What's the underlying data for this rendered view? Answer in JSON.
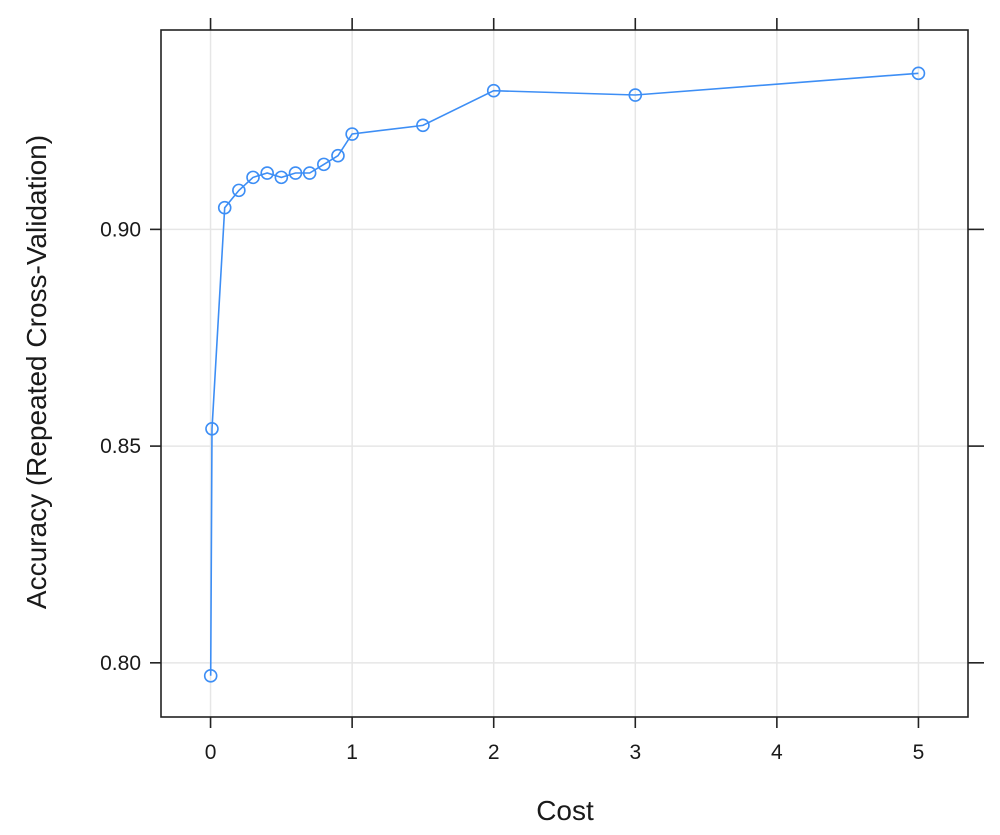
{
  "chart_data": {
    "type": "line",
    "title": "",
    "xlabel": "Cost",
    "ylabel": "Accuracy (Repeated Cross-Validation)",
    "xlim": [
      -0.35,
      5.35
    ],
    "ylim": [
      0.7875,
      0.946
    ],
    "x_ticks": [
      0,
      1,
      2,
      3,
      4,
      5
    ],
    "y_ticks": [
      0.8,
      0.85,
      0.9
    ],
    "x_tick_labels": [
      "0",
      "1",
      "2",
      "3",
      "4",
      "5"
    ],
    "y_tick_labels": [
      "0.80",
      "0.85",
      "0.90"
    ],
    "grid": true,
    "legend": "none",
    "series": [
      {
        "color": "#3d8ef5",
        "marker": "open-circle",
        "x": [
          0.001,
          0.01,
          0.1,
          0.2,
          0.3,
          0.4,
          0.5,
          0.6,
          0.7,
          0.8,
          0.9,
          1,
          1.5,
          2,
          3,
          5
        ],
        "y": [
          0.797,
          0.854,
          0.905,
          0.909,
          0.912,
          0.913,
          0.912,
          0.913,
          0.913,
          0.915,
          0.917,
          0.922,
          0.924,
          0.932,
          0.931,
          0.936
        ]
      }
    ]
  }
}
